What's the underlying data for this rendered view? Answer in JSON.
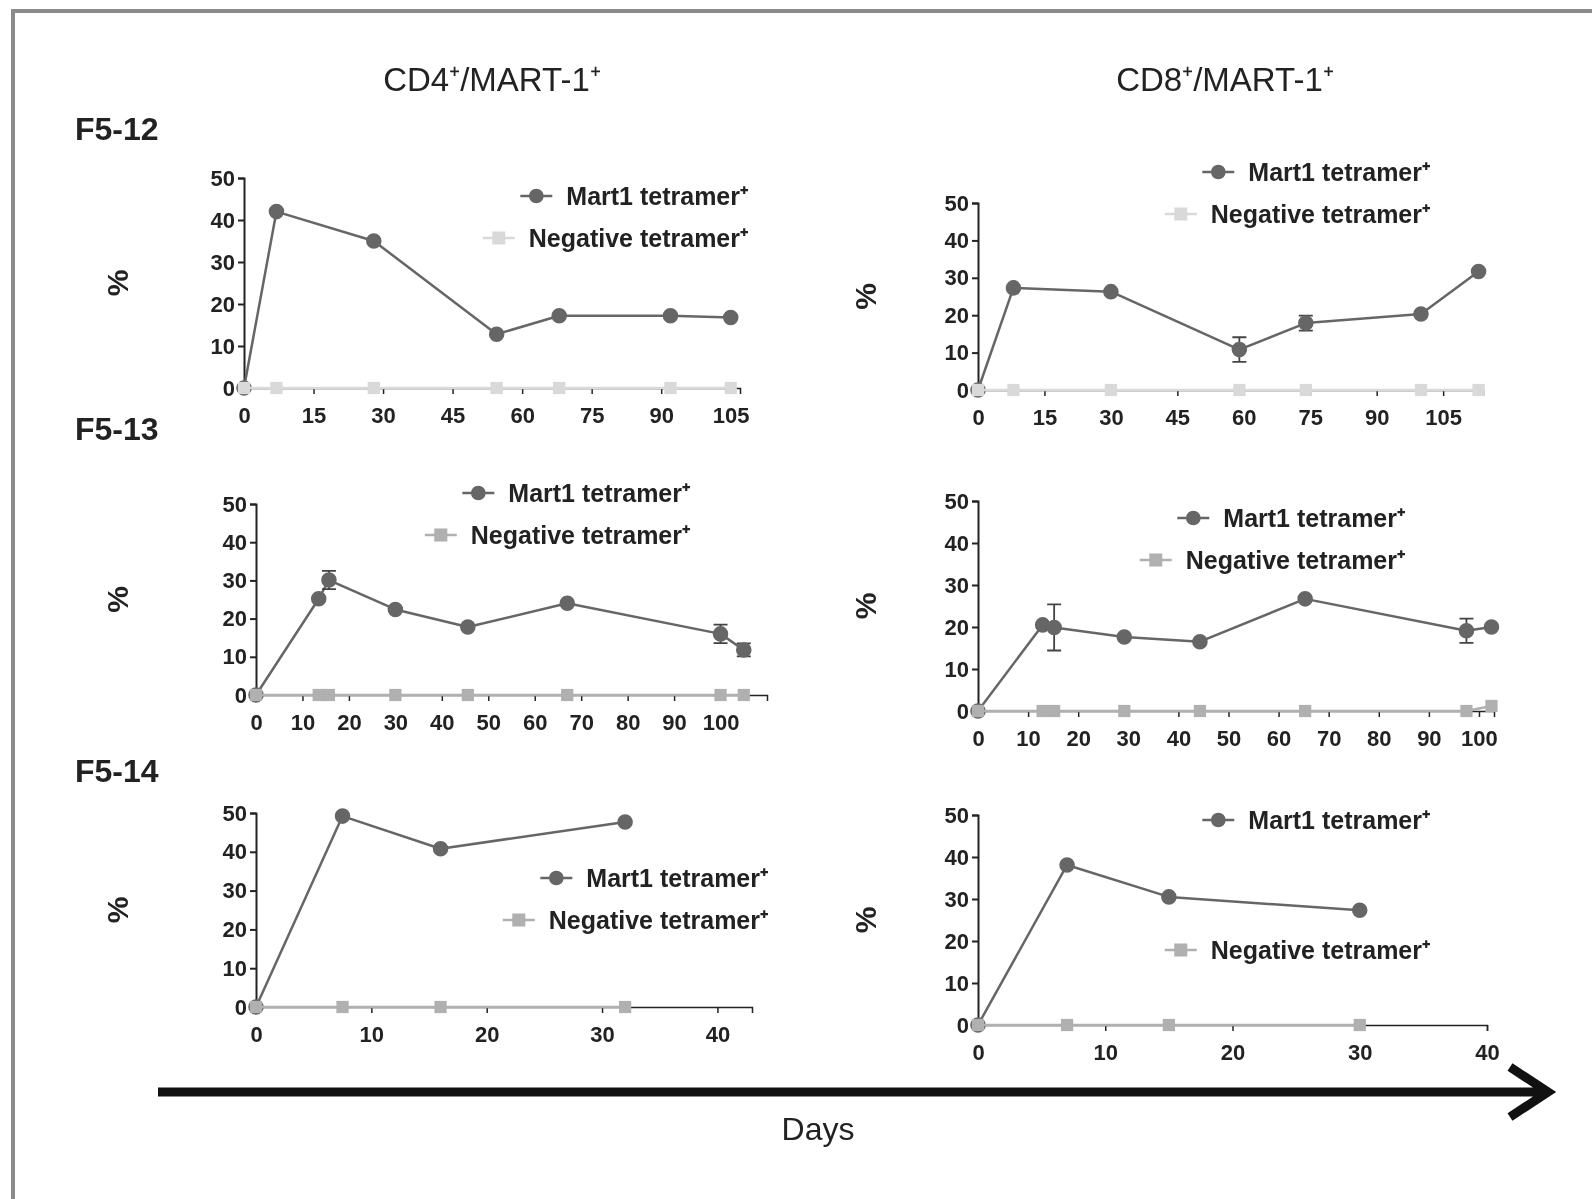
{
  "chart_data": [
    {
      "type": "line",
      "title": "CD4⁺/MART-1⁺",
      "subtitle": "F5-12",
      "ylabel": "%",
      "xlim": [
        0,
        107
      ],
      "xticks": [
        0,
        15,
        30,
        45,
        60,
        75,
        90,
        105
      ],
      "ylim": [
        0,
        50
      ],
      "yticks": [
        0,
        10,
        20,
        30,
        40,
        50
      ],
      "legend": "top right",
      "series": [
        {
          "name": "Mart1 tetramer⁺",
          "color": "#666666",
          "marker": "circle",
          "x": [
            0,
            7,
            28,
            54.5,
            68,
            92,
            105
          ],
          "values": [
            0,
            42,
            35,
            12.8,
            17.2,
            17.2,
            16.8
          ]
        },
        {
          "name": "Negative tetramer⁺",
          "color": "#d9d9d9",
          "marker": "square",
          "x": [
            0,
            7,
            28,
            54.5,
            68,
            92,
            105
          ],
          "values": [
            0,
            0,
            0,
            0,
            0,
            0,
            0
          ]
        }
      ]
    },
    {
      "type": "line",
      "title": "CD8⁺/MART-1⁺",
      "ylabel": "%",
      "xlim": [
        0,
        114
      ],
      "xticks": [
        0,
        15,
        30,
        45,
        60,
        75,
        90,
        105
      ],
      "ylim": [
        0,
        50
      ],
      "yticks": [
        0,
        10,
        20,
        30,
        40,
        50
      ],
      "legend": "top right",
      "series": [
        {
          "name": "Mart1 tetramer⁺",
          "color": "#666666",
          "marker": "circle",
          "x": [
            0,
            8,
            30,
            59,
            74,
            100,
            113
          ],
          "values": [
            0,
            27.3,
            26.3,
            10.8,
            17.9,
            20.3,
            31.7
          ],
          "errors": [
            null,
            null,
            null,
            3.3,
            2,
            null,
            null
          ]
        },
        {
          "name": "Negative tetramer⁺",
          "color": "#d9d9d9",
          "marker": "square",
          "x": [
            0,
            8,
            30,
            59,
            74,
            100,
            113
          ],
          "values": [
            0,
            0,
            0,
            0,
            0,
            0,
            0
          ]
        }
      ]
    },
    {
      "type": "line",
      "subtitle": "F5-13",
      "ylabel": "%",
      "xlim": [
        0,
        110
      ],
      "xticks": [
        0,
        10,
        20,
        30,
        40,
        50,
        60,
        70,
        80,
        90,
        100
      ],
      "ylim": [
        0,
        50
      ],
      "yticks": [
        0,
        10,
        20,
        30,
        40,
        50
      ],
      "legend": "top right",
      "series": [
        {
          "name": "Mart1 tetramer⁺",
          "color": "#666666",
          "marker": "circle",
          "x": [
            0,
            13.5,
            15.7,
            30,
            45.6,
            67,
            100,
            105
          ],
          "values": [
            0,
            25.2,
            30.1,
            22.4,
            17.8,
            24,
            16,
            11.8
          ],
          "errors": [
            null,
            null,
            2.4,
            null,
            null,
            null,
            2.4,
            1.7
          ]
        },
        {
          "name": "Negative tetramer⁺",
          "color": "#b0b0b0",
          "marker": "square",
          "x": [
            0,
            13.5,
            15.7,
            30,
            45.6,
            67,
            100,
            105
          ],
          "values": [
            0,
            0,
            0,
            0,
            0,
            0,
            0,
            0
          ]
        }
      ]
    },
    {
      "type": "line",
      "ylabel": "%",
      "xlim": [
        0,
        103
      ],
      "xticks": [
        0,
        10,
        20,
        30,
        40,
        50,
        60,
        70,
        80,
        90,
        100
      ],
      "ylim": [
        0,
        50
      ],
      "yticks": [
        0,
        10,
        20,
        30,
        40,
        50
      ],
      "legend": "top right",
      "series": [
        {
          "name": "Mart1 tetramer⁺",
          "color": "#666666",
          "marker": "circle",
          "x": [
            0,
            12.9,
            15.2,
            29.2,
            44.3,
            65.3,
            97.5,
            102.5
          ],
          "values": [
            0,
            20.5,
            19.9,
            17.6,
            16.5,
            26.7,
            19.1,
            20
          ],
          "errors": [
            null,
            null,
            5.5,
            null,
            null,
            null,
            2.9,
            null
          ]
        },
        {
          "name": "Negative tetramer⁺",
          "color": "#b0b0b0",
          "marker": "square",
          "x": [
            0,
            12.9,
            15.2,
            29.2,
            44.3,
            65.3,
            97.5,
            102.5
          ],
          "values": [
            0,
            0,
            0,
            0,
            0,
            0,
            0,
            1.2
          ]
        }
      ]
    },
    {
      "type": "line",
      "subtitle": "F5-14",
      "ylabel": "%",
      "xlabel": "Days",
      "xlim": [
        0,
        43
      ],
      "xticks": [
        0,
        10,
        20,
        30,
        40
      ],
      "ylim": [
        0,
        50
      ],
      "yticks": [
        0,
        10,
        20,
        30,
        40,
        50
      ],
      "legend": "right",
      "series": [
        {
          "name": "Mart1 tetramer⁺",
          "color": "#666666",
          "marker": "circle",
          "x": [
            0,
            7.5,
            16,
            32
          ],
          "values": [
            0,
            49.2,
            40.8,
            47.7
          ]
        },
        {
          "name": "Negative tetramer⁺",
          "color": "#b0b0b0",
          "marker": "square",
          "x": [
            0,
            7.5,
            16,
            32
          ],
          "values": [
            0,
            0,
            0,
            0
          ]
        }
      ]
    },
    {
      "type": "line",
      "ylabel": "%",
      "xlim": [
        0,
        40
      ],
      "xticks": [
        0,
        10,
        20,
        30,
        40
      ],
      "ylim": [
        0,
        50
      ],
      "yticks": [
        0,
        10,
        20,
        30,
        40,
        50
      ],
      "legend": "right",
      "series": [
        {
          "name": "Mart1 tetramer⁺",
          "color": "#666666",
          "marker": "circle",
          "x": [
            0,
            7,
            15,
            30
          ],
          "values": [
            0,
            38.1,
            30.5,
            27.3
          ]
        },
        {
          "name": "Negative tetramer⁺",
          "color": "#b0b0b0",
          "marker": "square",
          "x": [
            0,
            7,
            15,
            30
          ],
          "values": [
            0,
            0,
            0,
            0
          ]
        }
      ]
    }
  ]
}
